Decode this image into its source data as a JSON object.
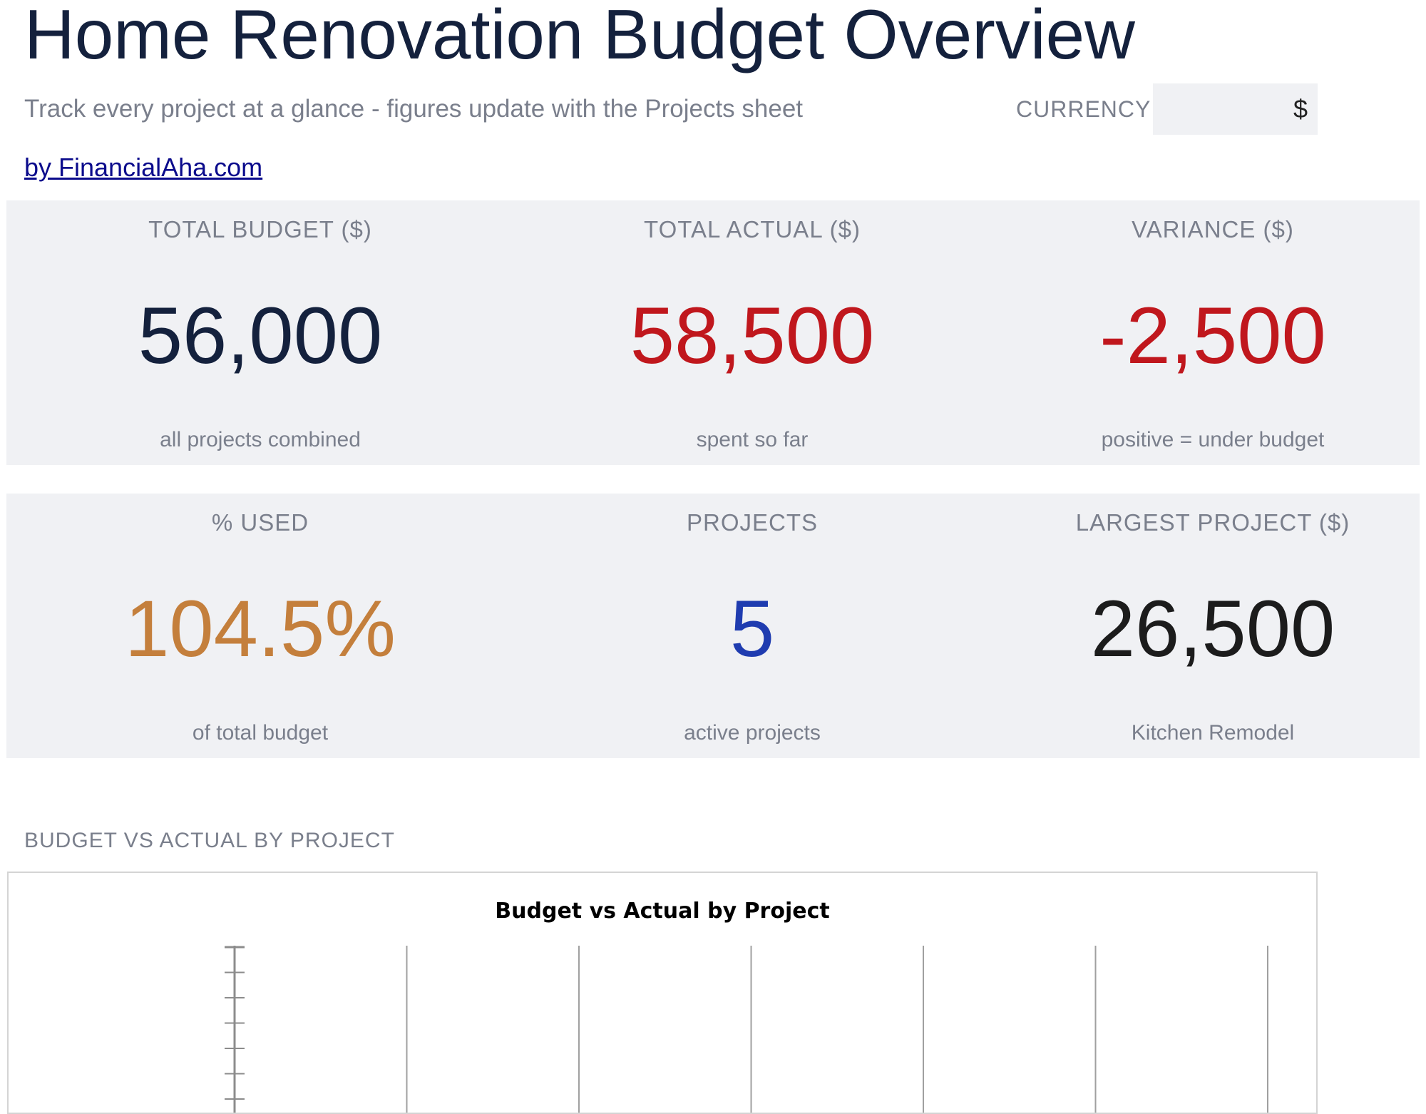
{
  "header": {
    "title": "Home Renovation Budget Overview",
    "subtitle": "Track every project at a glance - figures update with the Projects sheet",
    "currency_label": "CURRENCY",
    "currency_value": "$",
    "byline": "by FinancialAha.com"
  },
  "kpis_row1": [
    {
      "label": "TOTAL BUDGET ($)",
      "value": "56,000",
      "note": "all projects combined",
      "color": "#14213d"
    },
    {
      "label": "TOTAL ACTUAL ($)",
      "value": "58,500",
      "note": "spent so far",
      "color": "#c0171d"
    },
    {
      "label": "VARIANCE ($)",
      "value": "-2,500",
      "note": "positive = under budget",
      "color": "#c0171d"
    }
  ],
  "kpis_row2": [
    {
      "label": "% USED",
      "value": "104.5%",
      "note": "of total budget",
      "color": "#c47f3c"
    },
    {
      "label": "PROJECTS",
      "value": "5",
      "note": "active projects",
      "color": "#1f3cb0"
    },
    {
      "label": "LARGEST PROJECT ($)",
      "value": "26,500",
      "note": "Kitchen Remodel",
      "color": "#1c1c1c"
    }
  ],
  "section": {
    "heading": "BUDGET VS ACTUAL BY PROJECT"
  },
  "chart_data": {
    "type": "bar",
    "title": "Budget vs Actual by Project",
    "categories": [],
    "series": [],
    "gridlines": true,
    "gridline_count": 7
  }
}
